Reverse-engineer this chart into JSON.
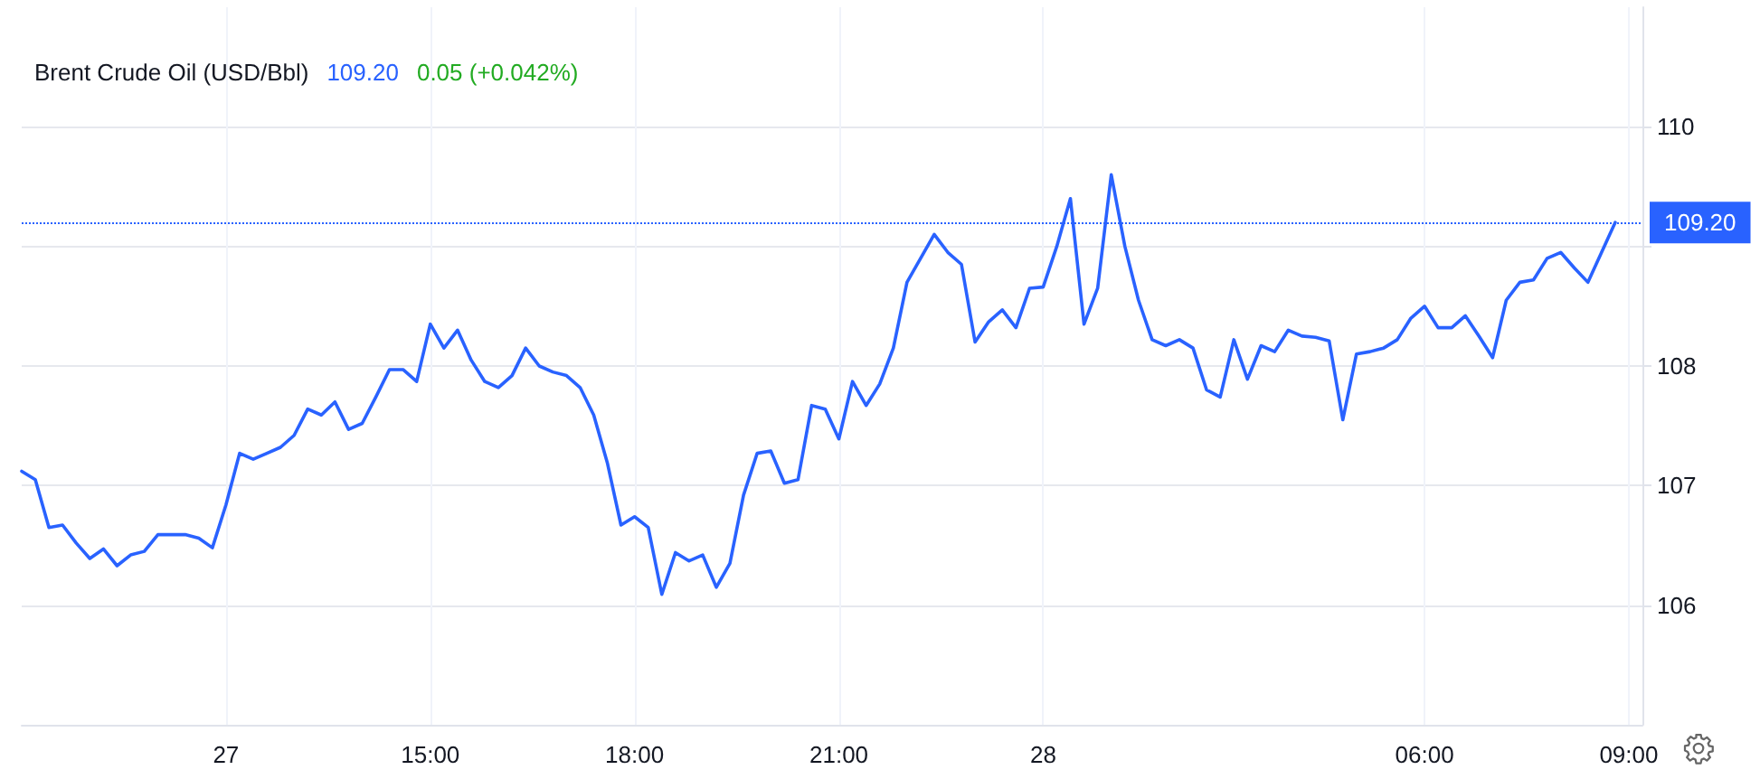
{
  "chart_data": {
    "type": "line",
    "title": "Brent Crude Oil (USD/Bbl)",
    "annotations": [
      "109.20",
      "0.05 (+0.042%)"
    ],
    "categories": [
      null,
      null,
      null,
      null,
      null,
      null,
      null,
      null,
      null,
      null,
      null,
      null,
      null,
      null,
      null,
      "27",
      null,
      null,
      null,
      null,
      null,
      null,
      null,
      null,
      null,
      null,
      null,
      null,
      null,
      null,
      "15:00",
      null,
      null,
      null,
      null,
      null,
      null,
      null,
      null,
      null,
      null,
      null,
      null,
      null,
      null,
      "18:00",
      null,
      null,
      null,
      null,
      null,
      null,
      null,
      null,
      null,
      null,
      null,
      null,
      null,
      null,
      "21:00",
      null,
      null,
      null,
      null,
      null,
      null,
      null,
      null,
      null,
      null,
      null,
      null,
      null,
      null,
      "28",
      null,
      null,
      null,
      null,
      null,
      null,
      null,
      null,
      null,
      null,
      null,
      null,
      null,
      null,
      null,
      null,
      null,
      null,
      null,
      null,
      null,
      null,
      null,
      null,
      null,
      null,
      null,
      "06:00",
      null,
      null,
      null,
      null,
      null,
      null,
      null,
      null,
      null,
      null,
      null,
      null,
      null,
      null,
      "09:00",
      null
    ],
    "series": [
      {
        "color": "#2962ff",
        "values": [
          107.12,
          107.05,
          106.65,
          106.67,
          106.52,
          106.39,
          106.47,
          106.33,
          106.42,
          106.45,
          106.59,
          106.59,
          106.59,
          106.56,
          106.48,
          106.84,
          107.27,
          107.22,
          107.27,
          107.32,
          107.42,
          107.64,
          107.59,
          107.7,
          107.47,
          107.52,
          107.74,
          107.97,
          107.97,
          107.87,
          108.35,
          108.15,
          108.3,
          108.05,
          107.87,
          107.82,
          107.92,
          108.15,
          108.0,
          107.95,
          107.92,
          107.82,
          107.59,
          107.19,
          106.67,
          106.74,
          106.65,
          106.09,
          106.44,
          106.37,
          106.42,
          106.15,
          106.35,
          106.92,
          107.27,
          107.29,
          107.02,
          107.05,
          107.67,
          107.64,
          107.39,
          107.87,
          107.67,
          107.85,
          108.15,
          108.7,
          108.9,
          109.1,
          108.95,
          108.85,
          108.2,
          108.37,
          108.47,
          108.32,
          108.65,
          108.66,
          109.0,
          109.4,
          108.35,
          108.65,
          109.6,
          109.0,
          108.55,
          108.22,
          108.17,
          108.22,
          108.15,
          107.8,
          107.74,
          108.22,
          107.89,
          108.17,
          108.12,
          108.3,
          108.25,
          108.24,
          108.21,
          107.55,
          108.1,
          108.12,
          108.15,
          108.22,
          108.4,
          108.5,
          108.32,
          108.32,
          108.42,
          108.25,
          108.07,
          108.55,
          108.7,
          108.72,
          108.9,
          108.95,
          108.82,
          108.7,
          108.95,
          109.2,
          null,
          null
        ]
      }
    ],
    "ylim": [
      105,
      111
    ],
    "yticks": [
      106,
      107,
      108,
      {
        "value": 109,
        "label": null
      },
      110
    ],
    "ref_lines": [
      {
        "axis": "y",
        "value": 109.2,
        "label": "109.20",
        "color": "#2962ff",
        "line_style": "dotted"
      }
    ],
    "grid": true,
    "marker": "none",
    "line_style": "solid"
  }
}
